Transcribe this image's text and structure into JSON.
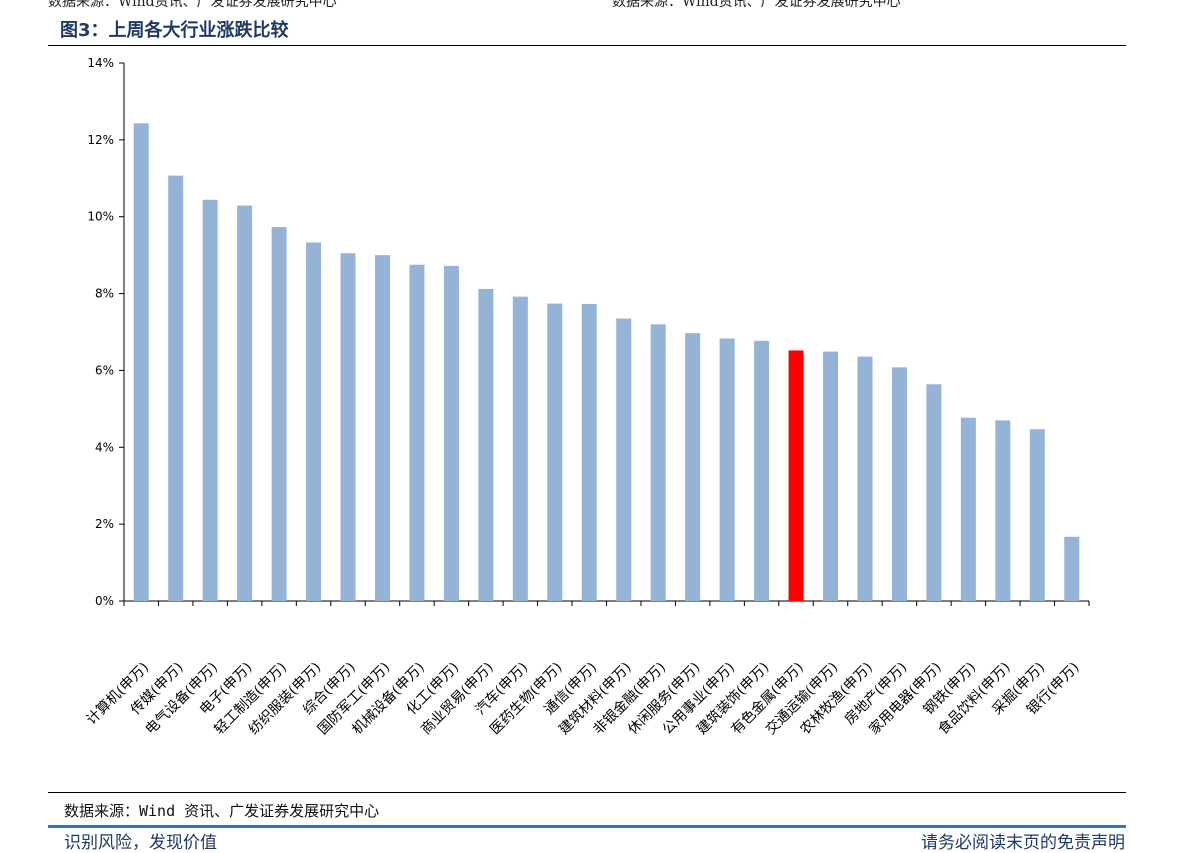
{
  "header": {
    "cut_left": "数据来源：Wind资讯、广发证券发展研究中心",
    "cut_right": "数据来源：Wind资讯、广发证券发展研究中心",
    "figure_title": "图3：上周各大行业涨跌比较"
  },
  "source": "数据来源：Wind 资讯、广发证券发展研究中心",
  "footer": {
    "left": "识别风险，发现价值",
    "right": "请务必阅读末页的免责声明"
  },
  "colors": {
    "bar": "#95b3d7",
    "highlight": "#ff0000",
    "axis": "#000000",
    "title": "#1f3864"
  },
  "chart_data": {
    "type": "bar",
    "title": "上周各大行业涨跌比较",
    "xlabel": "",
    "ylabel": "",
    "ylim": [
      0,
      14
    ],
    "yticks": [
      "0%",
      "2%",
      "4%",
      "6%",
      "8%",
      "10%",
      "12%",
      "14%"
    ],
    "grid": false,
    "legend": "none",
    "categories": [
      "计算机(申万)",
      "传媒(申万)",
      "电气设备(申万)",
      "电子(申万)",
      "轻工制造(申万)",
      "纺织服装(申万)",
      "综合(申万)",
      "国防军工(申万)",
      "机械设备(申万)",
      "化工(申万)",
      "商业贸易(申万)",
      "汽车(申万)",
      "医药生物(申万)",
      "通信(申万)",
      "建筑材料(申万)",
      "非银金融(申万)",
      "休闲服务(申万)",
      "公用事业(申万)",
      "建筑装饰(申万)",
      "有色金属(申万)",
      "交通运输(申万)",
      "农林牧渔(申万)",
      "房地产(申万)",
      "家用电器(申万)",
      "钢铁(申万)",
      "食品饮料(申万)",
      "采掘(申万)",
      "银行(申万)"
    ],
    "values": [
      12.43,
      11.07,
      10.44,
      10.29,
      9.73,
      9.33,
      9.05,
      9.0,
      8.75,
      8.72,
      8.12,
      7.92,
      7.74,
      7.73,
      7.35,
      7.2,
      6.97,
      6.83,
      6.77,
      6.52,
      6.49,
      6.36,
      6.08,
      5.64,
      4.77,
      4.7,
      4.47,
      1.67
    ],
    "highlight_index": 19
  }
}
